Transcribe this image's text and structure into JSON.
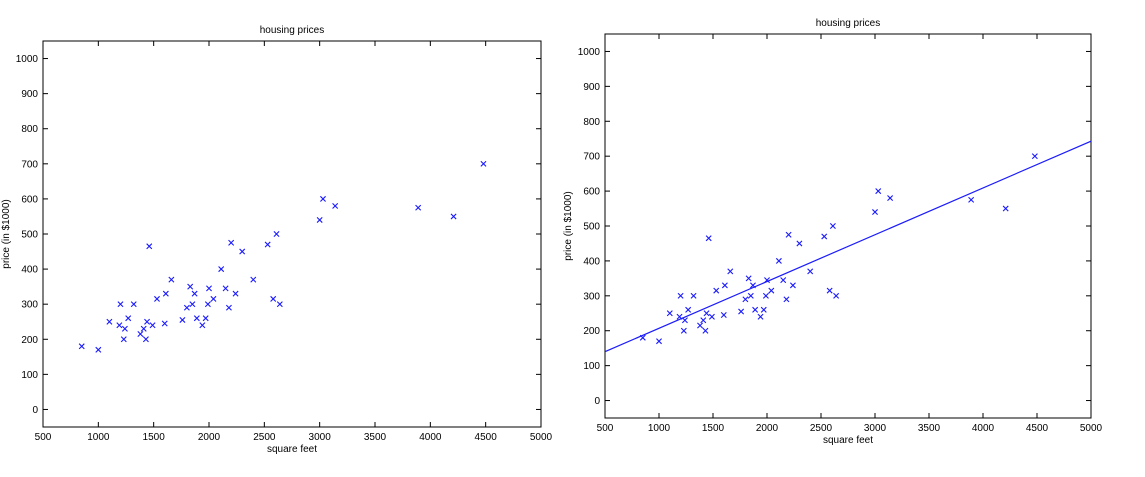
{
  "chart_data": [
    {
      "type": "scatter",
      "title": "housing prices",
      "xlabel": "square feet",
      "ylabel": "price (in $1000)",
      "xlim": [
        500,
        5000
      ],
      "ylim": [
        -50,
        1050
      ],
      "xticks": [
        500,
        1000,
        1500,
        2000,
        2500,
        3000,
        3500,
        4000,
        4500,
        5000
      ],
      "yticks": [
        0,
        100,
        200,
        300,
        400,
        500,
        600,
        700,
        800,
        900,
        1000
      ],
      "marker": "x",
      "marker_color": "#1a1aff",
      "grid": false,
      "points": [
        [
          850,
          180
        ],
        [
          1000,
          170
        ],
        [
          1100,
          250
        ],
        [
          1190,
          240
        ],
        [
          1200,
          300
        ],
        [
          1230,
          200
        ],
        [
          1240,
          230
        ],
        [
          1270,
          260
        ],
        [
          1320,
          300
        ],
        [
          1380,
          215
        ],
        [
          1410,
          230
        ],
        [
          1430,
          200
        ],
        [
          1440,
          250
        ],
        [
          1460,
          465
        ],
        [
          1490,
          240
        ],
        [
          1530,
          315
        ],
        [
          1600,
          245
        ],
        [
          1610,
          330
        ],
        [
          1660,
          370
        ],
        [
          1760,
          255
        ],
        [
          1800,
          290
        ],
        [
          1830,
          350
        ],
        [
          1850,
          300
        ],
        [
          1870,
          330
        ],
        [
          1890,
          260
        ],
        [
          1940,
          240
        ],
        [
          1970,
          260
        ],
        [
          1990,
          300
        ],
        [
          2000,
          345
        ],
        [
          2040,
          315
        ],
        [
          2110,
          400
        ],
        [
          2150,
          345
        ],
        [
          2180,
          290
        ],
        [
          2200,
          475
        ],
        [
          2240,
          330
        ],
        [
          2300,
          450
        ],
        [
          2400,
          370
        ],
        [
          2530,
          470
        ],
        [
          2580,
          315
        ],
        [
          2610,
          500
        ],
        [
          2640,
          300
        ],
        [
          3000,
          540
        ],
        [
          3030,
          600
        ],
        [
          3140,
          580
        ],
        [
          3890,
          575
        ],
        [
          4210,
          550
        ],
        [
          4480,
          700
        ]
      ]
    },
    {
      "type": "scatter",
      "title": "housing prices",
      "xlabel": "square feet",
      "ylabel": "price (in $1000)",
      "xlim": [
        500,
        5000
      ],
      "ylim": [
        -50,
        1050
      ],
      "xticks": [
        500,
        1000,
        1500,
        2000,
        2500,
        3000,
        3500,
        4000,
        4500,
        5000
      ],
      "yticks": [
        0,
        100,
        200,
        300,
        400,
        500,
        600,
        700,
        800,
        900,
        1000
      ],
      "marker": "x",
      "marker_color": "#1a1aff",
      "grid": false,
      "points": [
        [
          850,
          180
        ],
        [
          1000,
          170
        ],
        [
          1100,
          250
        ],
        [
          1190,
          240
        ],
        [
          1200,
          300
        ],
        [
          1230,
          200
        ],
        [
          1240,
          230
        ],
        [
          1270,
          260
        ],
        [
          1320,
          300
        ],
        [
          1380,
          215
        ],
        [
          1410,
          230
        ],
        [
          1430,
          200
        ],
        [
          1440,
          250
        ],
        [
          1460,
          465
        ],
        [
          1490,
          240
        ],
        [
          1530,
          315
        ],
        [
          1600,
          245
        ],
        [
          1610,
          330
        ],
        [
          1660,
          370
        ],
        [
          1760,
          255
        ],
        [
          1800,
          290
        ],
        [
          1830,
          350
        ],
        [
          1850,
          300
        ],
        [
          1870,
          330
        ],
        [
          1890,
          260
        ],
        [
          1940,
          240
        ],
        [
          1970,
          260
        ],
        [
          1990,
          300
        ],
        [
          2000,
          345
        ],
        [
          2040,
          315
        ],
        [
          2110,
          400
        ],
        [
          2150,
          345
        ],
        [
          2180,
          290
        ],
        [
          2200,
          475
        ],
        [
          2240,
          330
        ],
        [
          2300,
          450
        ],
        [
          2400,
          370
        ],
        [
          2530,
          470
        ],
        [
          2580,
          315
        ],
        [
          2610,
          500
        ],
        [
          2640,
          300
        ],
        [
          3000,
          540
        ],
        [
          3030,
          600
        ],
        [
          3140,
          580
        ],
        [
          3890,
          575
        ],
        [
          4210,
          550
        ],
        [
          4480,
          700
        ]
      ],
      "fit_line": {
        "x": [
          500,
          5000
        ],
        "y": [
          140,
          743
        ],
        "color": "#1a1aff"
      }
    }
  ]
}
